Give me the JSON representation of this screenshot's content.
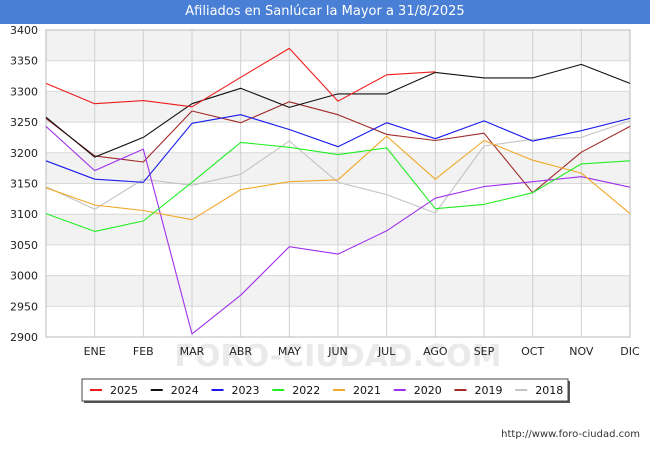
{
  "chart_data": {
    "type": "line",
    "title": "Afiliados en Sanlúcar la Mayor a 31/8/2025",
    "categories": [
      "",
      "ENE",
      "FEB",
      "MAR",
      "ABR",
      "MAY",
      "JUN",
      "JUL",
      "AGO",
      "SEP",
      "OCT",
      "NOV",
      "DIC"
    ],
    "ylim": [
      2900,
      3400
    ],
    "yticks": [
      2900,
      2950,
      3000,
      3050,
      3100,
      3150,
      3200,
      3250,
      3300,
      3350,
      3400
    ],
    "grid": true,
    "legend_position": "bottom",
    "series": [
      {
        "name": "2025",
        "color": "#ee1c1c",
        "values": [
          3313,
          3280,
          3285,
          3275,
          3323,
          3370,
          3284,
          3327,
          3332,
          null,
          null,
          null,
          null
        ]
      },
      {
        "name": "2024",
        "color": "#111111",
        "values": [
          3258,
          3193,
          3225,
          3280,
          3305,
          3274,
          3296,
          3296,
          3331,
          3322,
          3322,
          3344,
          3313
        ]
      },
      {
        "name": "2023",
        "color": "#1a1aee",
        "values": [
          3187,
          3157,
          3152,
          3248,
          3262,
          3238,
          3210,
          3249,
          3223,
          3252,
          3219,
          3236,
          3256
        ]
      },
      {
        "name": "2022",
        "color": "#22ee22",
        "values": [
          3101,
          3072,
          3089,
          3152,
          3217,
          3209,
          3197,
          3208,
          3109,
          3116,
          3135,
          3182,
          3187
        ]
      },
      {
        "name": "2021",
        "color": "#f0a82a",
        "values": [
          3143,
          3115,
          3106,
          3091,
          3140,
          3153,
          3156,
          3227,
          3157,
          3220,
          3188,
          3167,
          3101
        ]
      },
      {
        "name": "2020",
        "color": "#a030ee",
        "values": [
          3243,
          3171,
          3206,
          2905,
          2968,
          3047,
          3035,
          3073,
          3126,
          3145,
          3153,
          3161,
          3144
        ]
      },
      {
        "name": "2019",
        "color": "#a02a2a",
        "values": [
          3256,
          3195,
          3185,
          3268,
          3249,
          3283,
          3262,
          3230,
          3220,
          3232,
          3135,
          3201,
          3243
        ]
      },
      {
        "name": "2018",
        "color": "#c4c4c4",
        "values": [
          3145,
          3108,
          3157,
          3147,
          3165,
          3219,
          3152,
          3132,
          3102,
          3211,
          3222,
          3225,
          3252
        ]
      }
    ]
  },
  "footer_url": "http://www.foro-ciudad.com",
  "watermark": "FORO-CIUDAD.COM"
}
